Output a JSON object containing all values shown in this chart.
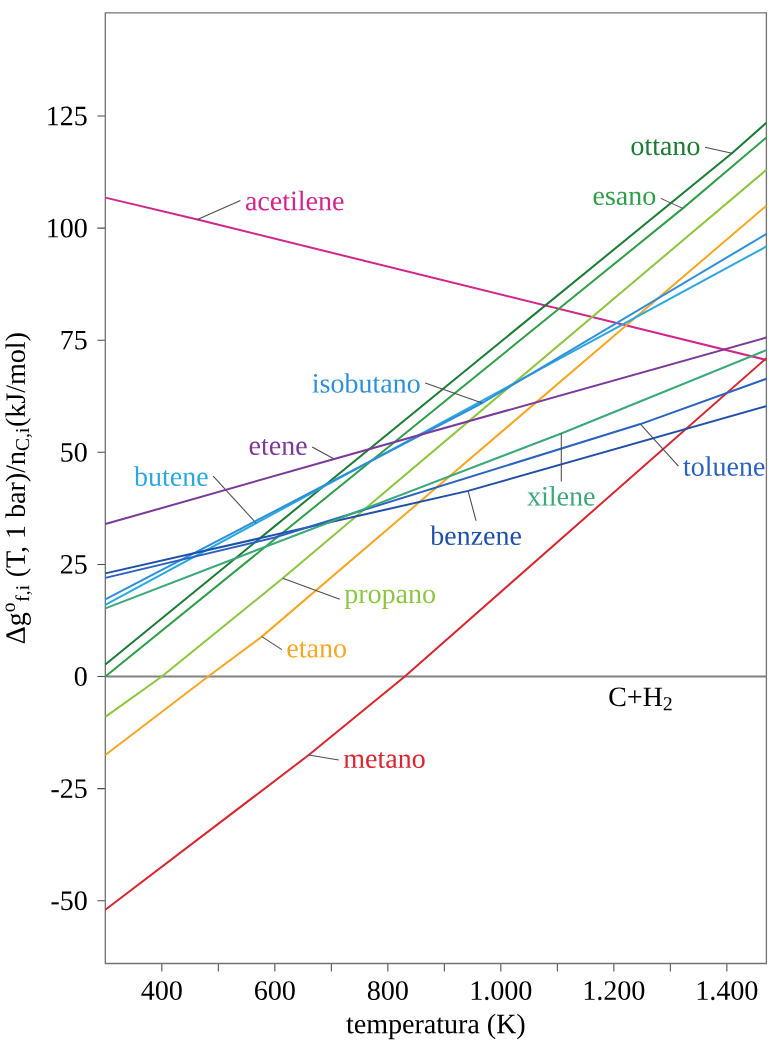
{
  "chart_data": {
    "type": "line",
    "xlabel": "temperatura (K)",
    "ylabel": "Δg$^{o}$$_{f,i}$ (T, 1 bar)/n$_{C,i}$(kJ/mol)",
    "xlim": [
      300,
      1470
    ],
    "ylim": [
      -64,
      148
    ],
    "xticks": [
      400,
      {
        "value": 500,
        "label": null
      },
      600,
      {
        "value": 700,
        "label": null
      },
      800,
      {
        "value": 900,
        "label": null
      },
      {
        "value": 1000,
        "label": "1.000"
      },
      {
        "value": 1100,
        "label": null
      },
      {
        "value": 1200,
        "label": "1.200"
      },
      {
        "value": 1300,
        "label": null
      },
      {
        "value": 1400,
        "label": "1.400"
      }
    ],
    "yticks": [
      -50,
      -25,
      0,
      25,
      50,
      75,
      100,
      125
    ],
    "grid": false,
    "marker": "none",
    "line_style": "solid",
    "ref_lines": [
      {
        "axis": "y",
        "value": 0,
        "label": "C+H$_{2}$",
        "color": "#808080"
      }
    ],
    "series": [
      {
        "name": "acetilene",
        "color": "#d0268a",
        "x": [
          300,
          463,
          1470
        ],
        "values": [
          106.8,
          101.9,
          70.6
        ]
      },
      {
        "name": "metano",
        "color": "#d7262f",
        "x": [
          300,
          660,
          830,
          1470
        ],
        "values": [
          -52,
          -17.5,
          0,
          71
        ]
      },
      {
        "name": "etano",
        "color": "#f5a623",
        "x": [
          300,
          482,
          577,
          1470
        ],
        "values": [
          -17.5,
          0,
          8.9,
          105
        ]
      },
      {
        "name": "propano",
        "color": "#8cc63f",
        "x": [
          300,
          400,
          614,
          1470
        ],
        "values": [
          -9,
          0,
          21.9,
          113
        ]
      },
      {
        "name": "esano",
        "color": "#2e9e48",
        "x": [
          300,
          1322,
          1470
        ],
        "values": [
          0,
          104.4,
          120.2
        ]
      },
      {
        "name": "ottano",
        "color": "#1b7a34",
        "x": [
          300,
          1409,
          1470
        ],
        "values": [
          2.7,
          116.7,
          123.5
        ]
      },
      {
        "name": "butene",
        "color": "#29a8e0",
        "x": [
          300,
          567,
          1470
        ],
        "values": [
          16,
          34.2,
          95.9
        ]
      },
      {
        "name": "isobutano",
        "color": "#2d8fd8",
        "x": [
          300,
          967,
          1470
        ],
        "values": [
          17.2,
          61,
          98.7
        ]
      },
      {
        "name": "etene",
        "color": "#7a3a9a",
        "x": [
          300,
          705,
          1470
        ],
        "values": [
          34,
          48.5,
          75.6
        ]
      },
      {
        "name": "benzene",
        "color": "#1f4fa8",
        "x": [
          300,
          942,
          1470
        ],
        "values": [
          23,
          41.4,
          60.3
        ]
      },
      {
        "name": "toluene",
        "color": "#2a62c0",
        "x": [
          300,
          600,
          1247,
          1470
        ],
        "values": [
          22,
          31,
          56.3,
          66.4
        ]
      },
      {
        "name": "xilene",
        "color": "#3aa878",
        "x": [
          300,
          533,
          1107,
          1470
        ],
        "values": [
          15.2,
          26.5,
          54.2,
          72.8
        ]
      }
    ]
  }
}
